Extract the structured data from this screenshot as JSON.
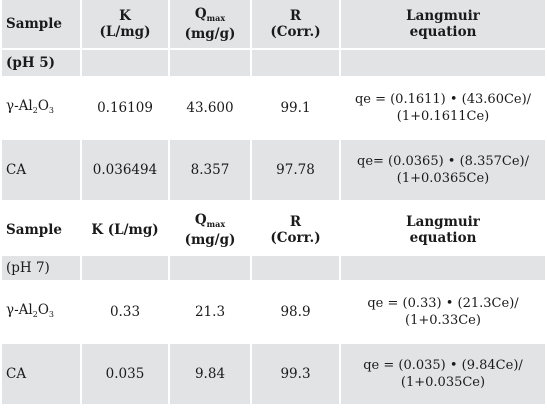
{
  "table1": {
    "headers": {
      "sample": "Sample",
      "k_line1": "K",
      "k_line2": "(L/mg)",
      "qmax_symbol": "Q",
      "qmax_sub": "max",
      "qmax_unit": "(mg/g)",
      "r_line1": "R",
      "r_line2": "(Corr.)",
      "eq_line1": "Langmuir",
      "eq_line2": "equation"
    },
    "group_label": "(pH 5)",
    "rows": [
      {
        "sample_prefix": "γ-",
        "sample_al": "Al",
        "sample_sub2": "2",
        "sample_o": "O",
        "sample_sub3": "3",
        "k": "0.16109",
        "qmax": "43.600",
        "r": "99.1",
        "eq_line1": "qe = (0.1611) • (43.60Ce)/",
        "eq_line2": "(1+0.1611Ce)"
      },
      {
        "sample": "CA",
        "k": "0.036494",
        "qmax": "8.357",
        "r": "97.78",
        "eq_line1": "qe= (0.0365) • (8.357Ce)/",
        "eq_line2": "(1+0.0365Ce)"
      }
    ]
  },
  "table2": {
    "headers": {
      "sample": "Sample",
      "k": "K (L/mg)",
      "qmax_symbol": "Q",
      "qmax_sub": "max",
      "qmax_unit": "(mg/g)",
      "r_line1": "R",
      "r_line2": "(Corr.)",
      "eq_line1": "Langmuir",
      "eq_line2": "equation"
    },
    "group_label": "(pH 7)",
    "rows": [
      {
        "sample_prefix": "γ-",
        "sample_al": "Al",
        "sample_sub2": "2",
        "sample_o": "O",
        "sample_sub3": "3",
        "k": "0.33",
        "qmax": "21.3",
        "r": "98.9",
        "eq_line1": "qe = (0.33) • (21.3Ce)/",
        "eq_line2": "(1+0.33Ce)"
      },
      {
        "sample": "CA",
        "k": "0.035",
        "qmax": "9.84",
        "r": "99.3",
        "eq_line1": "qe = (0.035) • (9.84Ce)/",
        "eq_line2": "(1+0.035Ce)"
      }
    ]
  },
  "colors": {
    "band": "#e2e3e5",
    "text": "#1a1a1a"
  }
}
